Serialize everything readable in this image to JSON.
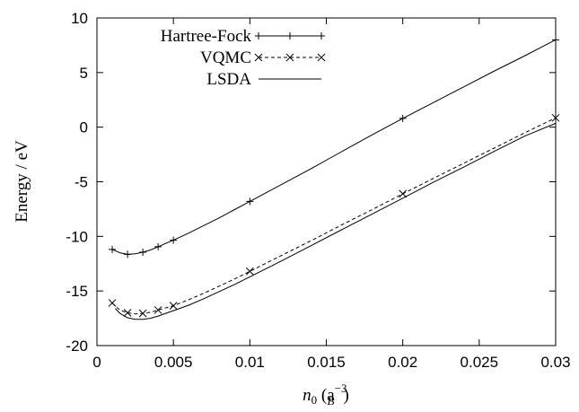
{
  "chart_data": {
    "type": "line",
    "xlabel": {
      "base": "n",
      "sub": "0",
      "units_open": " (a",
      "units_sub": "B",
      "units_sup": "−3",
      "units_close": ")"
    },
    "ylabel": "Energy / eV",
    "xlim": [
      0,
      0.03
    ],
    "ylim": [
      -20,
      10
    ],
    "x_ticks": [
      0,
      0.005,
      0.01,
      0.015,
      0.02,
      0.025,
      0.03
    ],
    "x_tick_labels": [
      "0",
      "0.005",
      "0.01",
      "0.015",
      "0.02",
      "0.025",
      "0.03"
    ],
    "y_ticks": [
      -20,
      -15,
      -10,
      -5,
      0,
      5,
      10
    ],
    "y_tick_labels": [
      "-20",
      "-15",
      "-10",
      "-5",
      "0",
      "5",
      "10"
    ],
    "legend_position": "top-left",
    "series": [
      {
        "name": "Hartree-Fock",
        "style": "solid",
        "marker": "plus",
        "curve": [
          [
            0.001,
            -11.2
          ],
          [
            0.0015,
            -11.5
          ],
          [
            0.002,
            -11.65
          ],
          [
            0.0025,
            -11.6
          ],
          [
            0.003,
            -11.45
          ],
          [
            0.0035,
            -11.25
          ],
          [
            0.004,
            -10.95
          ],
          [
            0.0045,
            -10.65
          ],
          [
            0.005,
            -10.35
          ],
          [
            0.006,
            -9.7
          ],
          [
            0.007,
            -9.0
          ],
          [
            0.008,
            -8.3
          ],
          [
            0.009,
            -7.55
          ],
          [
            0.01,
            -6.8
          ],
          [
            0.012,
            -5.3
          ],
          [
            0.014,
            -3.8
          ],
          [
            0.016,
            -2.25
          ],
          [
            0.018,
            -0.7
          ],
          [
            0.02,
            0.8
          ],
          [
            0.022,
            2.25
          ],
          [
            0.024,
            3.7
          ],
          [
            0.026,
            5.15
          ],
          [
            0.028,
            6.55
          ],
          [
            0.03,
            8.0
          ]
        ],
        "points": [
          [
            0.001,
            -11.2
          ],
          [
            0.002,
            -11.65
          ],
          [
            0.003,
            -11.45
          ],
          [
            0.004,
            -10.95
          ],
          [
            0.005,
            -10.35
          ],
          [
            0.01,
            -6.8
          ],
          [
            0.02,
            0.8
          ],
          [
            0.03,
            8.0
          ]
        ]
      },
      {
        "name": "VQMC",
        "style": "dashed",
        "marker": "cross",
        "curve": [
          [
            0.001,
            -16.1
          ],
          [
            0.0015,
            -16.75
          ],
          [
            0.002,
            -17.0
          ],
          [
            0.0025,
            -17.1
          ],
          [
            0.003,
            -17.05
          ],
          [
            0.0035,
            -16.95
          ],
          [
            0.004,
            -16.75
          ],
          [
            0.0045,
            -16.55
          ],
          [
            0.005,
            -16.35
          ],
          [
            0.006,
            -15.8
          ],
          [
            0.007,
            -15.2
          ],
          [
            0.008,
            -14.55
          ],
          [
            0.009,
            -13.9
          ],
          [
            0.01,
            -13.2
          ],
          [
            0.012,
            -11.8
          ],
          [
            0.014,
            -10.4
          ],
          [
            0.016,
            -8.95
          ],
          [
            0.018,
            -7.55
          ],
          [
            0.02,
            -6.1
          ],
          [
            0.022,
            -4.7
          ],
          [
            0.024,
            -3.3
          ],
          [
            0.026,
            -1.9
          ],
          [
            0.028,
            -0.5
          ],
          [
            0.03,
            0.85
          ]
        ],
        "points": [
          [
            0.001,
            -16.1
          ],
          [
            0.002,
            -17.0
          ],
          [
            0.003,
            -17.05
          ],
          [
            0.004,
            -16.75
          ],
          [
            0.005,
            -16.35
          ],
          [
            0.01,
            -13.2
          ],
          [
            0.02,
            -6.1
          ],
          [
            0.03,
            0.85
          ]
        ]
      },
      {
        "name": "LSDA",
        "style": "solid",
        "marker": "none",
        "curve": [
          [
            0.0012,
            -16.6
          ],
          [
            0.0015,
            -17.05
          ],
          [
            0.002,
            -17.45
          ],
          [
            0.0025,
            -17.6
          ],
          [
            0.003,
            -17.6
          ],
          [
            0.0035,
            -17.5
          ],
          [
            0.004,
            -17.3
          ],
          [
            0.0045,
            -17.05
          ],
          [
            0.005,
            -16.8
          ],
          [
            0.006,
            -16.3
          ],
          [
            0.007,
            -15.7
          ],
          [
            0.008,
            -15.05
          ],
          [
            0.009,
            -14.4
          ],
          [
            0.01,
            -13.7
          ],
          [
            0.012,
            -12.3
          ],
          [
            0.014,
            -10.85
          ],
          [
            0.016,
            -9.4
          ],
          [
            0.018,
            -7.95
          ],
          [
            0.02,
            -6.5
          ],
          [
            0.022,
            -5.05
          ],
          [
            0.024,
            -3.65
          ],
          [
            0.026,
            -2.2
          ],
          [
            0.028,
            -0.8
          ],
          [
            0.03,
            0.35
          ]
        ],
        "points": []
      }
    ]
  }
}
